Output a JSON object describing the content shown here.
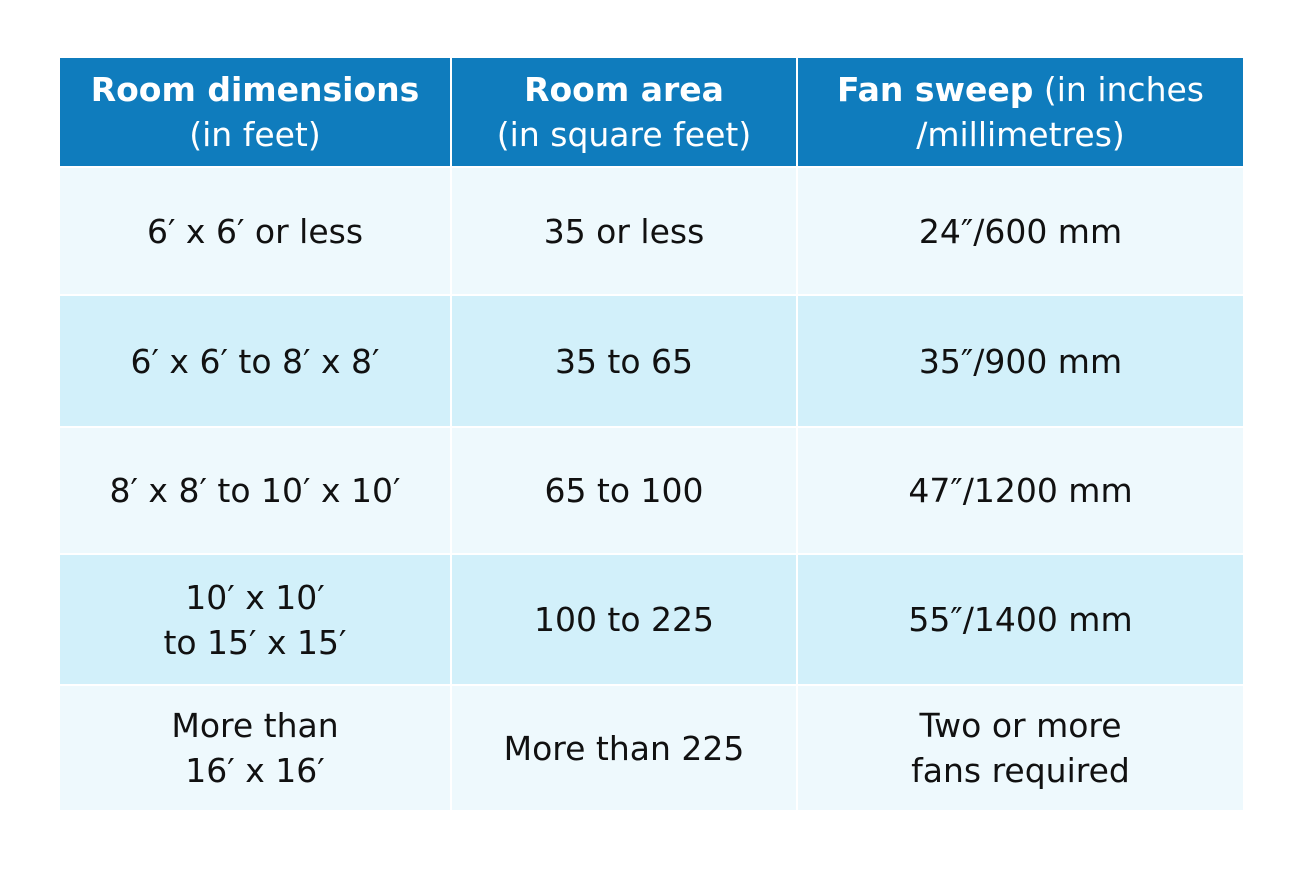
{
  "table": {
    "header": [
      {
        "lines": [
          [
            {
              "text": "Room dimensions",
              "bold": true
            }
          ],
          [
            {
              "text": "(in feet)",
              "bold": false
            }
          ]
        ]
      },
      {
        "lines": [
          [
            {
              "text": "Room area",
              "bold": true
            }
          ],
          [
            {
              "text": "(in square feet)",
              "bold": false
            }
          ]
        ]
      },
      {
        "lines": [
          [
            {
              "text": "Fan sweep",
              "bold": true
            },
            {
              "text": "(in inches",
              "bold": false
            }
          ],
          [
            {
              "text": "/millimetres)",
              "bold": false
            }
          ]
        ]
      }
    ],
    "rows": [
      [
        [
          "6′ x 6′ or less"
        ],
        [
          "35 or less"
        ],
        [
          "24″/600 mm"
        ]
      ],
      [
        [
          "6′ x 6′ to 8′ x 8′"
        ],
        [
          "35 to 65"
        ],
        [
          "35″/900 mm"
        ]
      ],
      [
        [
          "8′ x 8′ to 10′ x 10′"
        ],
        [
          "65 to 100"
        ],
        [
          "47″/1200 mm"
        ]
      ],
      [
        [
          "10′ x 10′",
          "to 15′ x 15′"
        ],
        [
          "100 to 225"
        ],
        [
          "55″/1400 mm"
        ]
      ],
      [
        [
          "More than",
          "16′ x 16′"
        ],
        [
          "More than 225"
        ],
        [
          "Two or more",
          "fans required"
        ]
      ]
    ]
  }
}
